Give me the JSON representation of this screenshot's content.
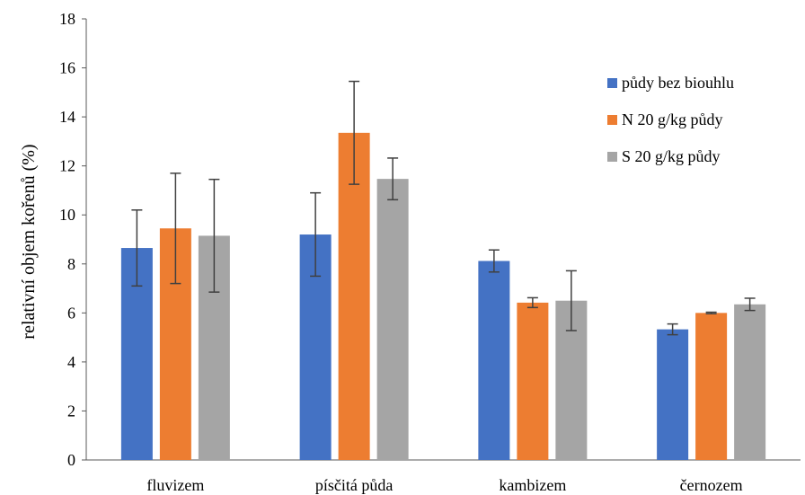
{
  "chart_data": {
    "type": "bar",
    "title": "",
    "xlabel": "",
    "ylabel": "relativní objem kořenů (%)",
    "ylim": [
      0,
      18
    ],
    "yticks": [
      0,
      2,
      4,
      6,
      8,
      10,
      12,
      14,
      16,
      18
    ],
    "categories": [
      "fluvizem",
      "písčitá půda",
      "kambizem",
      "černozem"
    ],
    "series": [
      {
        "name": "půdy bez biouhlu",
        "color": "#4472c4",
        "values": [
          8.65,
          9.2,
          8.12,
          5.33
        ],
        "errors": [
          1.55,
          1.7,
          0.45,
          0.22
        ]
      },
      {
        "name": "N 20 g/kg půdy",
        "color": "#ed7d31",
        "values": [
          9.45,
          13.35,
          6.42,
          6.0
        ],
        "errors": [
          2.25,
          2.1,
          0.2,
          0.03
        ]
      },
      {
        "name": "S 20 g/kg půdy",
        "color": "#a5a5a5",
        "values": [
          9.15,
          11.47,
          6.5,
          6.35
        ],
        "errors": [
          2.3,
          0.85,
          1.22,
          0.25
        ]
      }
    ],
    "legend_position": "right",
    "grid": false
  }
}
